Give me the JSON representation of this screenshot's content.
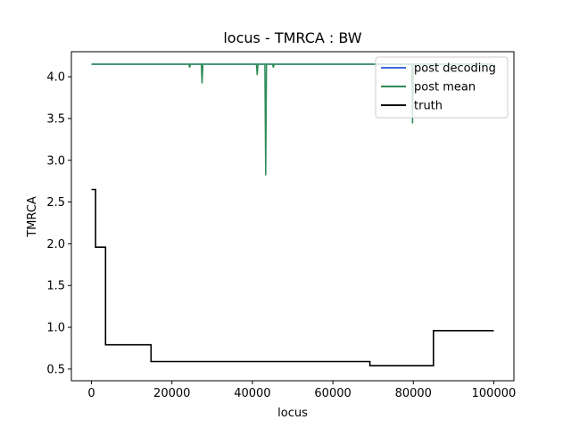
{
  "chart_data": {
    "type": "line",
    "title": "locus - TMRCA : BW",
    "xlabel": "locus",
    "ylabel": "TMRCA",
    "xlim": [
      -5000,
      105000
    ],
    "ylim": [
      0.36,
      4.3
    ],
    "x_ticks": [
      0,
      20000,
      40000,
      60000,
      80000,
      100000
    ],
    "x_tick_labels": [
      "0",
      "20000",
      "40000",
      "60000",
      "80000",
      "100000"
    ],
    "y_ticks": [
      0.5,
      1.0,
      1.5,
      2.0,
      2.5,
      3.0,
      3.5,
      4.0
    ],
    "y_tick_labels": [
      "0.5",
      "1.0",
      "1.5",
      "2.0",
      "2.5",
      "3.0",
      "3.5",
      "4.0"
    ],
    "grid": false,
    "legend_position": "top-right",
    "series": [
      {
        "name": "post decoding",
        "color": "#4169e1",
        "style": "line",
        "x": [
          0,
          100000
        ],
        "y": [
          4.15,
          4.15
        ]
      },
      {
        "name": "post mean",
        "color": "#2e8b57",
        "style": "line",
        "x": [
          0,
          24200,
          24400,
          24600,
          27300,
          27500,
          27700,
          41000,
          41200,
          41400,
          43100,
          43300,
          43500,
          45000,
          45200,
          45400,
          79600,
          79800,
          80000,
          100000
        ],
        "y": [
          4.15,
          4.15,
          4.11,
          4.15,
          4.15,
          3.92,
          4.15,
          4.15,
          4.02,
          4.15,
          4.15,
          2.82,
          4.15,
          4.15,
          4.11,
          4.15,
          4.15,
          3.44,
          4.15,
          4.15
        ]
      },
      {
        "name": "truth",
        "color": "#000000",
        "style": "step",
        "x": [
          0,
          1000,
          1000,
          3500,
          3500,
          14800,
          14800,
          69200,
          69200,
          85000,
          85000,
          100000
        ],
        "y": [
          2.65,
          2.65,
          1.96,
          1.96,
          0.79,
          0.79,
          0.59,
          0.59,
          0.54,
          0.54,
          0.96,
          0.96
        ]
      }
    ]
  }
}
